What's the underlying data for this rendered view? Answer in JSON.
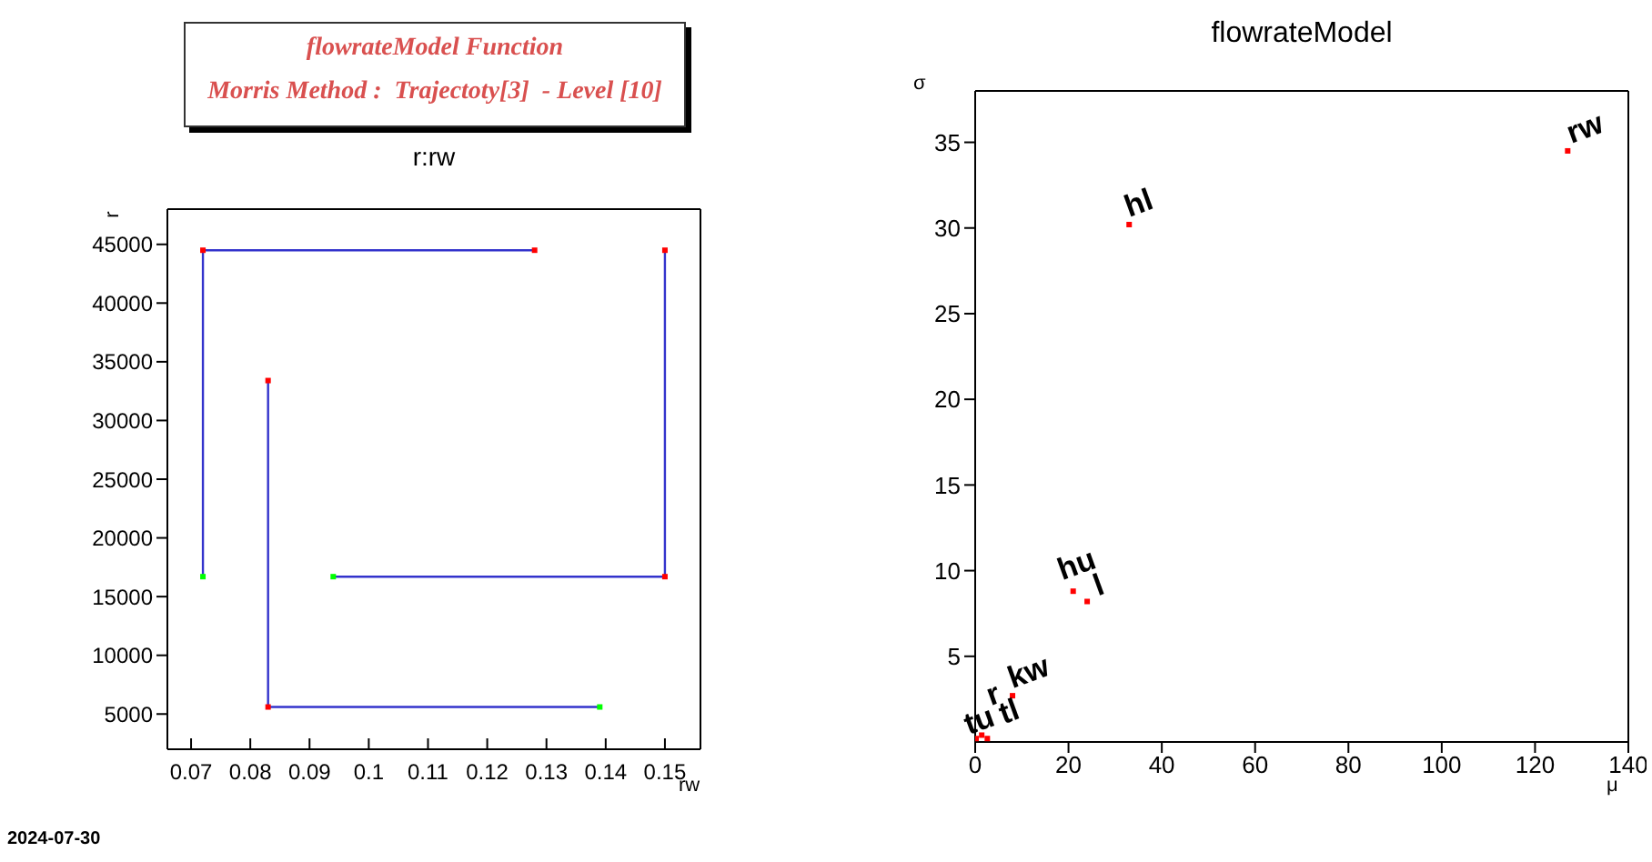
{
  "chart_data": [
    {
      "type": "other",
      "title": "flowrateModel Function",
      "subtitle": "Morris Method :  Trajectoty[3]  - Level [10]",
      "annotations": [
        "2024-07-30"
      ]
    },
    {
      "type": "line",
      "title": "r:rw",
      "xlabel": "rw",
      "ylabel": "r",
      "xlim": [
        0.066,
        0.156
      ],
      "xticks": [
        0.07,
        0.08,
        0.09,
        0.1,
        0.11,
        0.12,
        0.13,
        0.14,
        0.15
      ],
      "ylim": [
        2000,
        48000
      ],
      "yticks": [
        5000,
        10000,
        15000,
        20000,
        25000,
        30000,
        35000,
        40000,
        45000
      ],
      "marker": "square",
      "line_style": "solid",
      "series": [
        {
          "color": "#3333cc",
          "x": [
            0.072,
            0.072,
            0.128
          ],
          "values": [
            16700,
            44500,
            44500
          ],
          "colors": [
            "#00ff00",
            "#ff0000",
            "#ff0000"
          ]
        },
        {
          "color": "#3333cc",
          "x": [
            0.094,
            0.15,
            0.15
          ],
          "values": [
            16700,
            16700,
            44500
          ],
          "colors": [
            "#00ff00",
            "#ff0000",
            "#ff0000"
          ]
        },
        {
          "color": "#3333cc",
          "x": [
            0.139,
            0.083,
            0.083
          ],
          "values": [
            5600,
            5600,
            33400
          ],
          "colors": [
            "#00ff00",
            "#ff0000",
            "#ff0000"
          ]
        }
      ]
    },
    {
      "type": "scatter",
      "title": "flowrateModel",
      "xlabel": "μ",
      "ylabel": "σ",
      "xlim": [
        0,
        140
      ],
      "xticks": [
        0,
        20,
        40,
        60,
        80,
        100,
        120,
        140
      ],
      "ylim": [
        0,
        38
      ],
      "yticks": [
        5,
        10,
        15,
        20,
        25,
        30,
        35
      ],
      "marker": "square",
      "series": [
        {
          "color": "#ff0000",
          "x": [
            127,
            33,
            21,
            24,
            8,
            0.2,
            1.4,
            2.6
          ],
          "values": [
            34.5,
            30.2,
            8.8,
            8.2,
            2.7,
            0.2,
            0.4,
            0.2
          ]
        }
      ],
      "annotations": [
        {
          "text": "rw",
          "x": 127,
          "y": 34.5
        },
        {
          "text": "hl",
          "x": 33,
          "y": 30.2
        },
        {
          "text": "hu",
          "x": 21,
          "y": 8.8
        },
        {
          "text": "l",
          "x": 24,
          "y": 8.2
        },
        {
          "text": "kw",
          "x": 8,
          "y": 2.7
        },
        {
          "text": "tu",
          "x": 0.2,
          "y": 0.2
        },
        {
          "text": "tl",
          "x": 1.4,
          "y": 0.4
        },
        {
          "text": "r",
          "x": 2.6,
          "y": 0.2
        }
      ]
    }
  ]
}
